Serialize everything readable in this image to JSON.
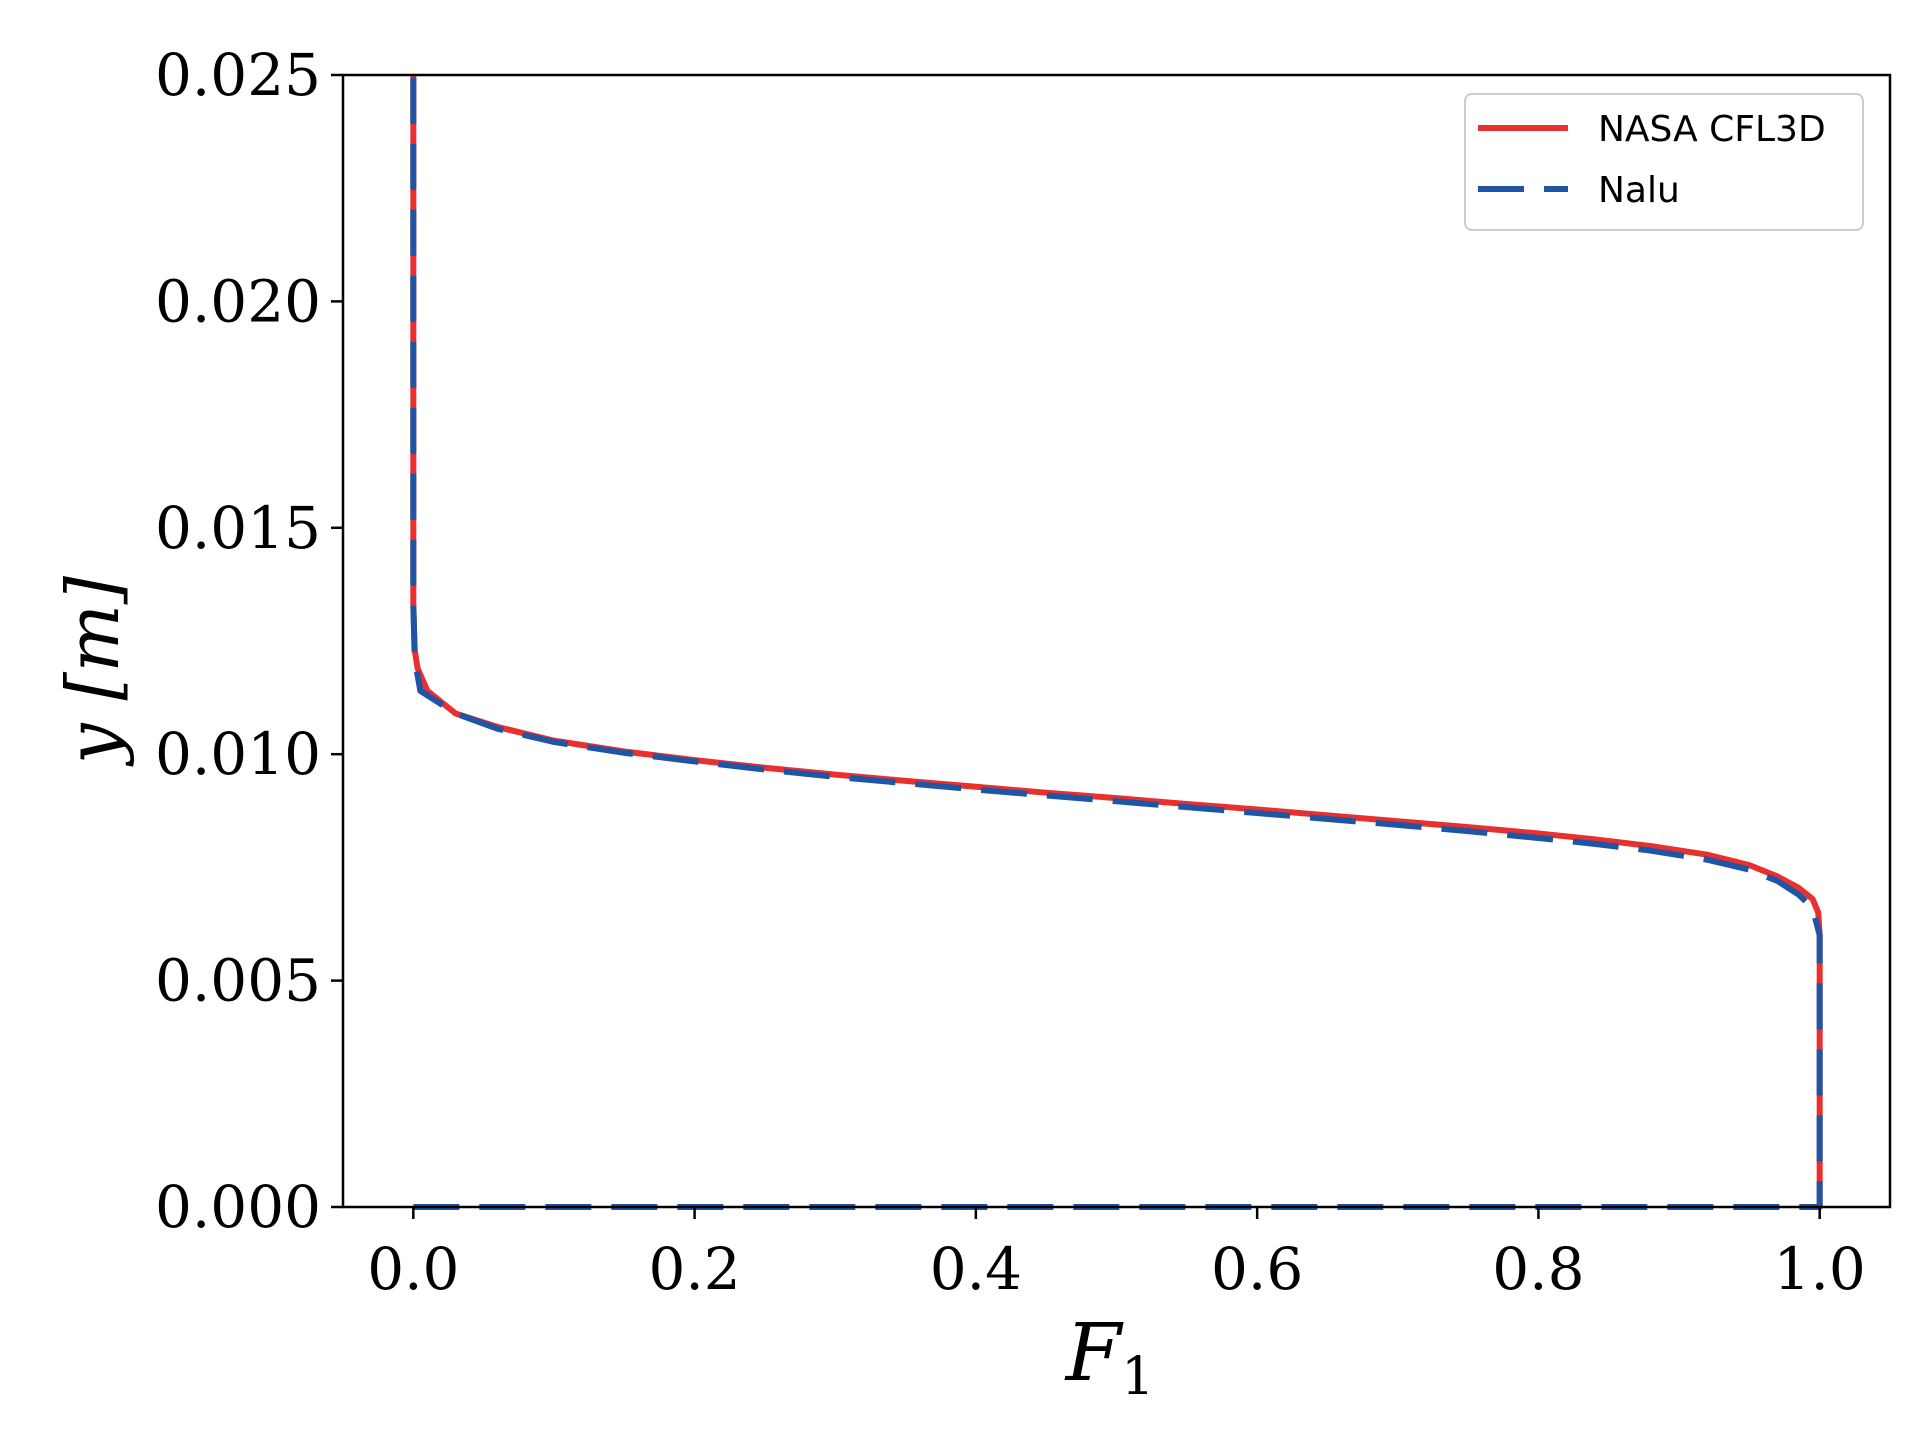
{
  "chart_data": {
    "type": "line",
    "title": "",
    "xlabel": "F",
    "xlabel_subscript": "1",
    "ylabel": "y [m]",
    "xlim": [
      -0.05,
      1.05
    ],
    "ylim": [
      0.0,
      0.025
    ],
    "xticks": [
      0.0,
      0.2,
      0.4,
      0.6,
      0.8,
      1.0
    ],
    "xtick_labels": [
      "0.0",
      "0.2",
      "0.4",
      "0.6",
      "0.8",
      "1.0"
    ],
    "yticks": [
      0.0,
      0.005,
      0.01,
      0.015,
      0.02,
      0.025
    ],
    "ytick_labels": [
      "0.000",
      "0.005",
      "0.010",
      "0.015",
      "0.020",
      "0.025"
    ],
    "grid": false,
    "legend_position": "top-right",
    "series": [
      {
        "name": "NASA CFL3D",
        "color": "#e8302e",
        "style": "solid",
        "x": [
          1.0,
          1.0,
          1.0,
          0.999,
          0.995,
          0.985,
          0.97,
          0.95,
          0.92,
          0.88,
          0.84,
          0.8,
          0.75,
          0.7,
          0.65,
          0.6,
          0.55,
          0.5,
          0.45,
          0.4,
          0.35,
          0.3,
          0.25,
          0.2,
          0.15,
          0.1,
          0.06,
          0.03,
          0.01,
          0.003,
          0.001,
          0.0,
          0.0
        ],
        "y": [
          0.0,
          0.004,
          0.006,
          0.0065,
          0.0068,
          0.00705,
          0.0073,
          0.00755,
          0.00778,
          0.00797,
          0.00812,
          0.00825,
          0.00839,
          0.00852,
          0.00865,
          0.00878,
          0.0089,
          0.00903,
          0.00915,
          0.00928,
          0.00941,
          0.00955,
          0.0097,
          0.00987,
          0.01006,
          0.0103,
          0.0106,
          0.0109,
          0.0114,
          0.0119,
          0.0123,
          0.0133,
          0.025
        ]
      },
      {
        "name": "Nalu",
        "color": "#1f55a5",
        "style": "dashed",
        "x": [
          0.0,
          0.5,
          1.0,
          1.0,
          1.0,
          0.995,
          0.985,
          0.97,
          0.95,
          0.92,
          0.88,
          0.84,
          0.8,
          0.75,
          0.7,
          0.65,
          0.6,
          0.55,
          0.5,
          0.45,
          0.4,
          0.35,
          0.3,
          0.25,
          0.2,
          0.15,
          0.1,
          0.06,
          0.03,
          0.005,
          0.001,
          0.0,
          0.0
        ],
        "y": [
          0.0,
          0.0,
          0.0,
          0.004,
          0.006,
          0.0066,
          0.0069,
          0.0072,
          0.00745,
          0.00767,
          0.00787,
          0.00802,
          0.00815,
          0.0083,
          0.00844,
          0.00857,
          0.0087,
          0.00883,
          0.00896,
          0.00909,
          0.00922,
          0.00936,
          0.0095,
          0.00966,
          0.00984,
          0.01003,
          0.01027,
          0.01056,
          0.0109,
          0.0114,
          0.0121,
          0.0133,
          0.025
        ]
      }
    ]
  }
}
